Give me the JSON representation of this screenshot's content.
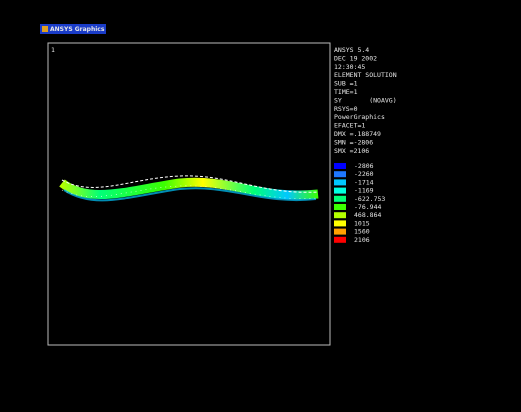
{
  "window": {
    "title": "ANSYS Graphics",
    "viewport": "1"
  },
  "info": [
    "ANSYS 5.4",
    "DEC 19 2002",
    "12:30:45",
    "ELEMENT SOLUTION",
    "SUB =1",
    "TIME=1",
    "SY       (NOAVG)",
    "RSYS=0",
    "PowerGraphics",
    "EFACET=1",
    "DMX =.188749",
    "SMN =-2806",
    "SMX =2106"
  ],
  "legend": {
    "values": [
      -2806,
      -2260,
      -1714,
      -1169,
      -622.753,
      -76.944,
      468.864,
      1015,
      1560,
      2106
    ],
    "colors": [
      "#0000ff",
      "#1f78ff",
      "#00c8ff",
      "#00ffe0",
      "#00ff78",
      "#3cff00",
      "#b4ff00",
      "#ffff00",
      "#ffa000",
      "#ff0000"
    ]
  }
}
